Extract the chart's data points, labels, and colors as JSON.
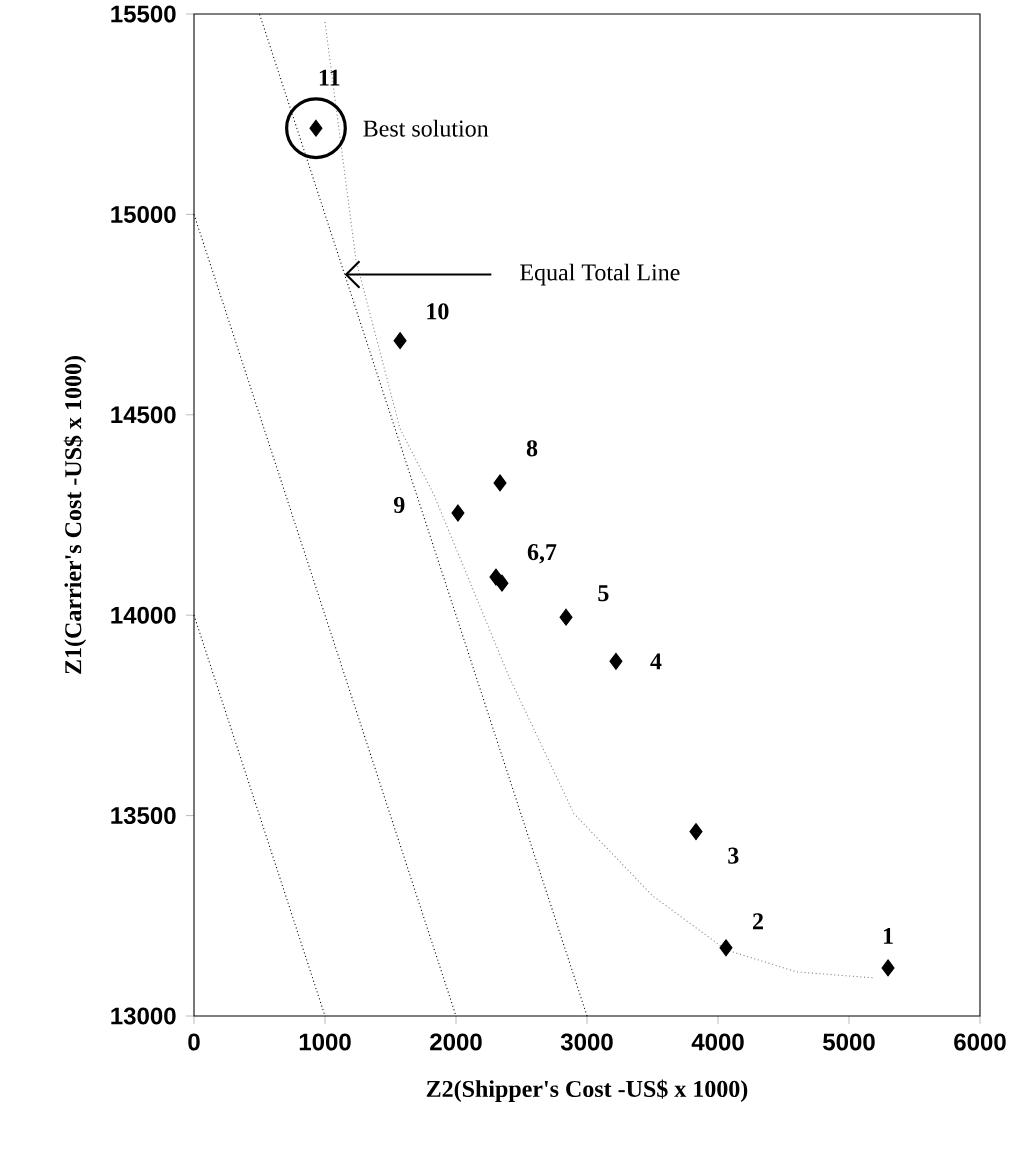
{
  "chart_data": {
    "type": "scatter",
    "xlabel": "Z2(Shipper's Cost -US$ x 1000)",
    "ylabel": "Z1(Carrier's Cost -US$ x 1000)",
    "xlim": [
      0,
      6000
    ],
    "ylim": [
      13000,
      15500
    ],
    "xticks": [
      0,
      1000,
      2000,
      3000,
      4000,
      5000,
      6000
    ],
    "yticks": [
      13000,
      13500,
      14000,
      14500,
      15000,
      15500
    ],
    "series": [
      {
        "marker": "diamond",
        "color": "#000000",
        "x": [
          5298,
          4061,
          3832,
          3221,
          2840,
          2305,
          2351,
          2336,
          2015,
          1573,
          931
        ],
        "values": [
          13120,
          13170,
          13460,
          13885,
          13995,
          14095,
          14080,
          14330,
          14255,
          14685,
          15215
        ]
      },
      {
        "type": "line",
        "line_style": "dotted",
        "color": "#808080",
        "x": [
          1000,
          1237,
          1573,
          1832,
          2400,
          2900,
          3500,
          4061,
          4600,
          5190
        ],
        "values": [
          15480,
          14885,
          14465,
          14300,
          13850,
          13505,
          13300,
          13165,
          13110,
          13095
        ]
      },
      {
        "type": "line",
        "line_style": "dotted",
        "color": "#000000",
        "x": [
          0,
          1000
        ],
        "values": [
          14000,
          13000
        ]
      },
      {
        "type": "line",
        "line_style": "dotted",
        "color": "#000000",
        "x": [
          0,
          2000
        ],
        "values": [
          15000,
          13000
        ]
      },
      {
        "type": "line",
        "line_style": "dotted",
        "color": "#000000",
        "x": [
          3000,
          500
        ],
        "values": [
          13000,
          15500
        ]
      }
    ],
    "annotations": [
      {
        "text": "1",
        "x": 5298,
        "y": 13120
      },
      {
        "text": "2",
        "x": 4061,
        "y": 13170
      },
      {
        "text": "3",
        "x": 3832,
        "y": 13460
      },
      {
        "text": "4",
        "x": 3221,
        "y": 13885
      },
      {
        "text": "5",
        "x": 2840,
        "y": 13995
      },
      {
        "text": "6,7",
        "x": 2351,
        "y": 14080
      },
      {
        "text": "8",
        "x": 2336,
        "y": 14330
      },
      {
        "text": "9",
        "x": 2015,
        "y": 14255
      },
      {
        "text": "10",
        "x": 1573,
        "y": 14685
      },
      {
        "text": "11",
        "x": 931,
        "y": 15215
      },
      {
        "text": "Best solution",
        "x": 931,
        "y": 15215
      },
      {
        "text": "Equal Total Line",
        "x": 1150,
        "y": 14850
      }
    ]
  }
}
